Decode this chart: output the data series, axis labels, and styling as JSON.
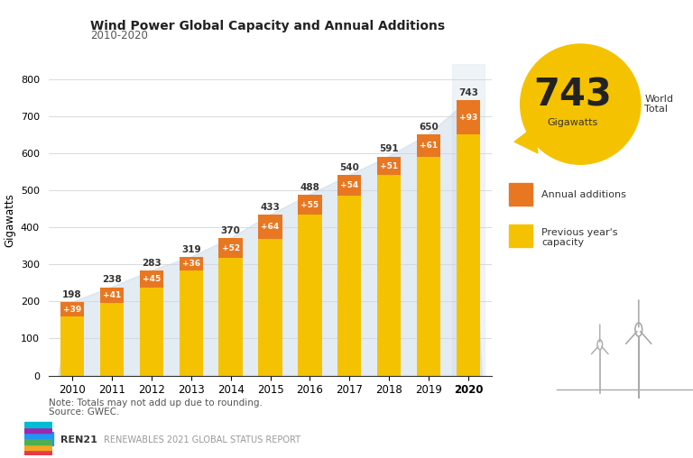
{
  "years": [
    "2010",
    "2011",
    "2012",
    "2013",
    "2014",
    "2015",
    "2016",
    "2017",
    "2018",
    "2019",
    "2020"
  ],
  "totals": [
    198,
    238,
    283,
    319,
    370,
    433,
    488,
    540,
    591,
    650,
    743
  ],
  "additions": [
    39,
    41,
    45,
    36,
    52,
    64,
    55,
    54,
    51,
    61,
    93
  ],
  "previous": [
    159,
    197,
    238,
    283,
    318,
    369,
    433,
    486,
    540,
    589,
    650
  ],
  "color_additions": "#E87722",
  "color_previous": "#F5C200",
  "color_shadow": "#C8D8E8",
  "title": "Wind Power Global Capacity and Annual Additions",
  "subtitle": "2010-2020",
  "ylabel": "Gigawatts",
  "ylim": [
    0,
    840
  ],
  "yticks": [
    0,
    100,
    200,
    300,
    400,
    500,
    600,
    700,
    800
  ],
  "note": "Note: Totals may not add up due to rounding.",
  "source": "Source: GWEC.",
  "footer": "RENEWABLES 2021 GLOBAL STATUS REPORT",
  "world_total_value": "743",
  "world_total_unit": "Gigawatts",
  "world_total_label": "World\nTotal",
  "balloon_color": "#F5C200",
  "legend_annual": "Annual additions",
  "legend_previous": "Previous year's\ncapacity",
  "highlight_year": "2020"
}
